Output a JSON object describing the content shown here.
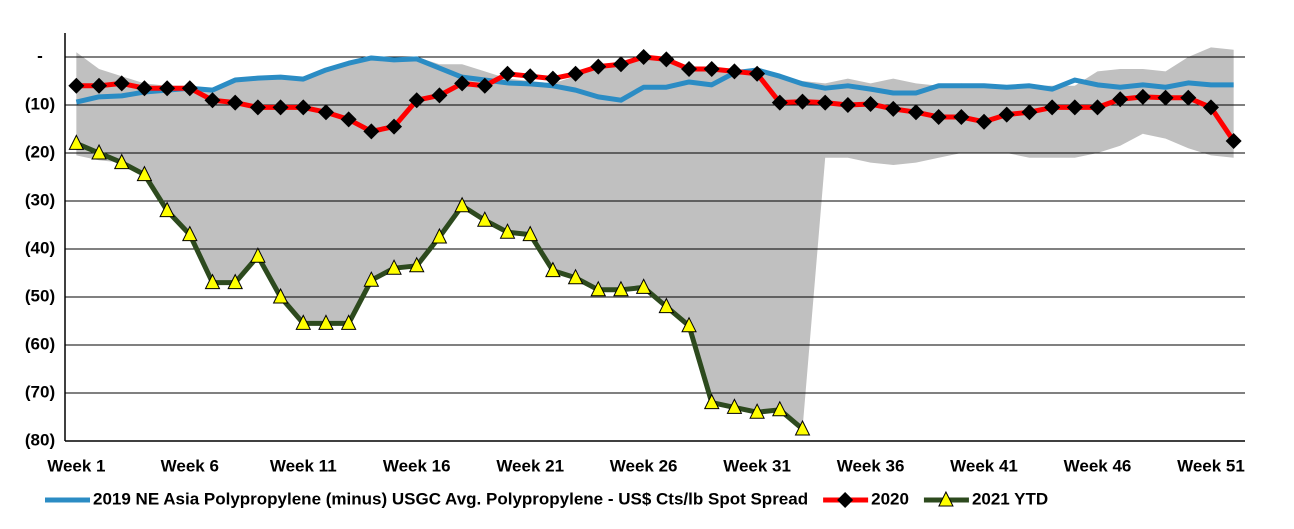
{
  "chart_data": {
    "type": "line",
    "categories": [
      "Week 1",
      null,
      null,
      null,
      null,
      "Week 6",
      null,
      null,
      null,
      null,
      "Week 11",
      null,
      null,
      null,
      null,
      "Week 16",
      null,
      null,
      null,
      null,
      "Week 21",
      null,
      null,
      null,
      null,
      "Week 26",
      null,
      null,
      null,
      null,
      "Week 31",
      null,
      null,
      null,
      null,
      "Week 36",
      null,
      null,
      null,
      null,
      "Week 41",
      null,
      null,
      null,
      null,
      "Week 46",
      null,
      null,
      null,
      null,
      "Week 51",
      null
    ],
    "range_band": {
      "color": "#c0c0c0",
      "upper": [
        1,
        -2.5,
        -4,
        -5.5,
        -6,
        -6,
        -6.5,
        -5,
        -4.5,
        -4,
        -4.5,
        -2.5,
        -1,
        0,
        0,
        0,
        -1.5,
        -1.5,
        -3,
        -4.5,
        -5,
        -5.5,
        -4,
        -2,
        -1.5,
        0,
        -0.5,
        -2.5,
        -2.5,
        -3,
        -3.5,
        -4,
        -5,
        -5.5,
        -4.5,
        -5.5,
        -4.5,
        -5.5,
        -6,
        -5.5,
        -6,
        -6,
        -6,
        -6,
        -6,
        -3,
        -2.5,
        -2.5,
        -3,
        0,
        2,
        1.5
      ],
      "lower": [
        -20.5,
        -21.5,
        -22,
        -24.5,
        -32,
        -37,
        -47,
        -47,
        -41.5,
        -50,
        -55.5,
        -55.5,
        -55.5,
        -46.5,
        -44,
        -43.5,
        -37.5,
        -31,
        -34,
        -36.5,
        -37,
        -44.5,
        -46,
        -48.5,
        -48.5,
        -48,
        -52,
        -56,
        -72,
        -73,
        -74,
        -73.5,
        -77.5,
        -21,
        -21,
        -22,
        -22.5,
        -22,
        -21,
        -20,
        -20,
        -20,
        -21,
        -21,
        -21,
        -20,
        -18.5,
        -16,
        -17,
        -19,
        -20.5,
        -21
      ]
    },
    "series": [
      {
        "name": "2019 NE Asia Polypropylene (minus) USGC Avg. Polypropylene - US$ Cts/lb Spot Spread",
        "color": "#2b8cc4",
        "marker": "none",
        "values": [
          -9.4,
          -8.3,
          -8.1,
          -7.3,
          -6.9,
          -6.5,
          -6.9,
          -4.8,
          -4.4,
          -4.2,
          -4.6,
          -2.7,
          -1.3,
          -0.2,
          -0.6,
          -0.4,
          -2.3,
          -4.2,
          -4.8,
          -5.4,
          -5.6,
          -6.0,
          -6.9,
          -8.3,
          -9.0,
          -6.3,
          -6.3,
          -5.2,
          -5.8,
          -3.3,
          -2.7,
          -4.0,
          -5.6,
          -6.5,
          -6.0,
          -6.7,
          -7.5,
          -7.5,
          -6.0,
          -6.0,
          -6.0,
          -6.3,
          -6.0,
          -6.7,
          -4.8,
          -5.8,
          -6.3,
          -5.8,
          -6.3,
          -5.4,
          -5.8,
          -5.8
        ]
      },
      {
        "name": "2020",
        "color": "#ff0000",
        "marker": "diamond",
        "marker_color": "#000000",
        "values": [
          -6,
          -6,
          -5.5,
          -6.5,
          -6.5,
          -6.5,
          -9,
          -9.5,
          -10.5,
          -10.5,
          -10.5,
          -11.5,
          -13,
          -15.5,
          -14.5,
          -9,
          -8,
          -5.5,
          -6,
          -3.5,
          -4,
          -4.5,
          -3.5,
          -2,
          -1.5,
          0,
          -0.5,
          -2.5,
          -2.5,
          -3,
          -3.5,
          -9.5,
          -9.3,
          -9.5,
          -10,
          -9.8,
          -10.8,
          -11.5,
          -12.5,
          -12.5,
          -13.5,
          -12,
          -11.5,
          -10.5,
          -10.5,
          -10.5,
          -8.8,
          -8.3,
          -8.5,
          -8.5,
          -10.5,
          -17.5
        ]
      },
      {
        "name": "2021 YTD",
        "color": "#2d4a1e",
        "marker": "triangle",
        "marker_color": "#ffff00",
        "values": [
          -18,
          -20,
          -22,
          -24.5,
          -32,
          -37,
          -47,
          -47,
          -41.5,
          -50,
          -55.5,
          -55.5,
          -55.5,
          -46.5,
          -44,
          -43.5,
          -37.5,
          -31,
          -34,
          -36.5,
          -37,
          -44.5,
          -46,
          -48.5,
          -48.5,
          -48,
          -52,
          -56,
          -72,
          -73,
          -74,
          -73.5,
          -77.5,
          null,
          null,
          null,
          null,
          null,
          null,
          null,
          null,
          null,
          null,
          null,
          null,
          null,
          null,
          null,
          null,
          null,
          null,
          null
        ]
      }
    ],
    "ylim": [
      -80,
      5
    ],
    "yticks": [
      {
        "value": 0,
        "label": "-"
      },
      {
        "value": -10,
        "label": "(10)"
      },
      {
        "value": -20,
        "label": "(20)"
      },
      {
        "value": -30,
        "label": "(30)"
      },
      {
        "value": -40,
        "label": "(40)"
      },
      {
        "value": -50,
        "label": "(50)"
      },
      {
        "value": -60,
        "label": "(60)"
      },
      {
        "value": -70,
        "label": "(70)"
      },
      {
        "value": -80,
        "label": "(80)"
      }
    ],
    "grid": true
  }
}
